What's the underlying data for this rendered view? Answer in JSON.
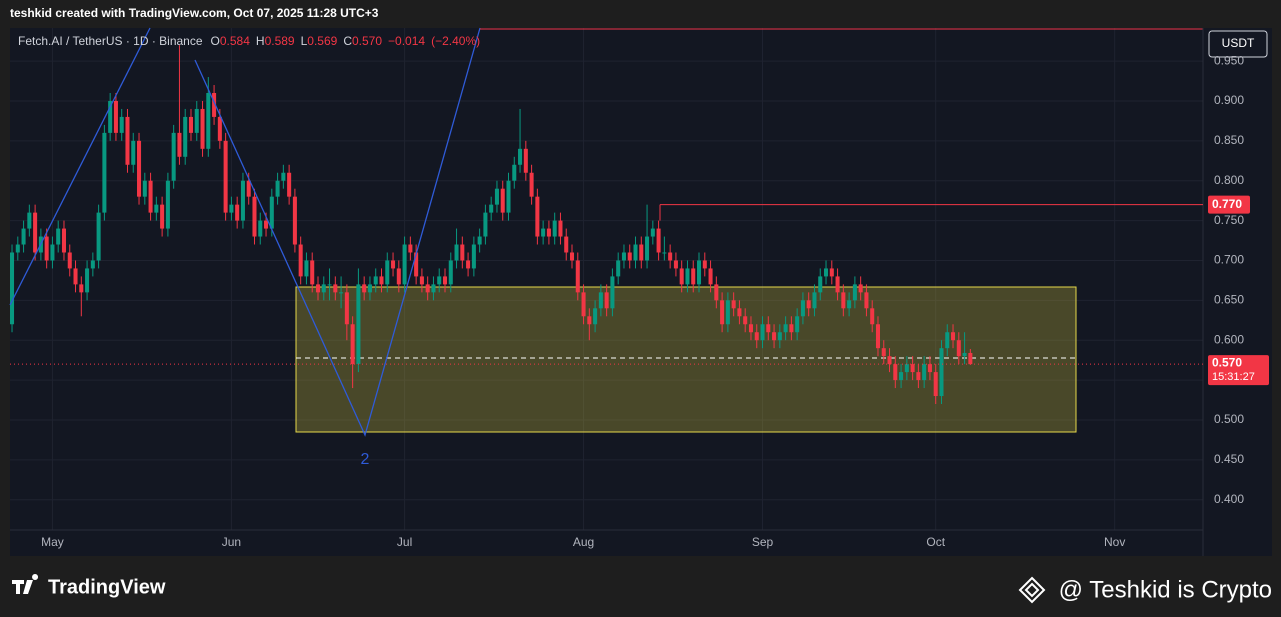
{
  "header": {
    "credit": "teshkid created with TradingView.com, Oct 07, 2025 11:28 UTC+3"
  },
  "chart_data": {
    "type": "candlestick",
    "symbol": "Fetch.AI / TetherUS · 1D · Binance",
    "ohlc_labels": {
      "open": "O",
      "high": "H",
      "low": "L",
      "close": "C"
    },
    "last": {
      "open": 0.584,
      "high": 0.589,
      "low": 0.569,
      "close": {
        "value": 0.57,
        "label": "0.570"
      }
    },
    "change": {
      "value": -0.014,
      "label": "−0.014"
    },
    "change_pct": {
      "value": -2.4,
      "label": "(−2.40%)"
    },
    "currency": "USDT",
    "up_color": "#089981",
    "down_color": "#f23645",
    "open": [
      0.62,
      0.71,
      0.72,
      0.74,
      0.76,
      0.71,
      0.73,
      0.7,
      0.72,
      0.74,
      0.71,
      0.69,
      0.67,
      0.66,
      0.69,
      0.7,
      0.76,
      0.86,
      0.9,
      0.86,
      0.88,
      0.82,
      0.85,
      0.78,
      0.8,
      0.76,
      0.77,
      0.74,
      0.8,
      0.86,
      0.83,
      0.88,
      0.86,
      0.89,
      0.84,
      0.91,
      0.88,
      0.85,
      0.76,
      0.77,
      0.75,
      0.8,
      0.78,
      0.73,
      0.75,
      0.74,
      0.78,
      0.8,
      0.81,
      0.78,
      0.72,
      0.68,
      0.7,
      0.67,
      0.66,
      0.67,
      0.67,
      0.66,
      0.66,
      0.62,
      0.57,
      0.67,
      0.66,
      0.67,
      0.68,
      0.67,
      0.7,
      0.69,
      0.67,
      0.72,
      0.71,
      0.68,
      0.67,
      0.66,
      0.67,
      0.68,
      0.67,
      0.7,
      0.72,
      0.7,
      0.69,
      0.72,
      0.73,
      0.76,
      0.77,
      0.79,
      0.76,
      0.8,
      0.82,
      0.84,
      0.81,
      0.78,
      0.73,
      0.74,
      0.73,
      0.75,
      0.73,
      0.71,
      0.7,
      0.66,
      0.63,
      0.62,
      0.64,
      0.66,
      0.64,
      0.68,
      0.7,
      0.71,
      0.7,
      0.72,
      0.7,
      0.73,
      0.74,
      0.71,
      0.71,
      0.7,
      0.69,
      0.67,
      0.69,
      0.67,
      0.7,
      0.69,
      0.67,
      0.65,
      0.62,
      0.65,
      0.64,
      0.63,
      0.62,
      0.61,
      0.6,
      0.62,
      0.61,
      0.6,
      0.61,
      0.62,
      0.61,
      0.63,
      0.65,
      0.64,
      0.66,
      0.68,
      0.69,
      0.68,
      0.66,
      0.64,
      0.65,
      0.67,
      0.66,
      0.64,
      0.62,
      0.59,
      0.58,
      0.57,
      0.55,
      0.56,
      0.57,
      0.56,
      0.55,
      0.57,
      0.56,
      0.53,
      0.59,
      0.61,
      0.6,
      0.58,
      0.584
    ],
    "high": [
      0.72,
      0.73,
      0.75,
      0.77,
      0.77,
      0.74,
      0.74,
      0.73,
      0.75,
      0.75,
      0.72,
      0.7,
      0.68,
      0.7,
      0.71,
      0.77,
      0.87,
      0.91,
      0.91,
      0.89,
      0.89,
      0.86,
      0.86,
      0.81,
      0.81,
      0.78,
      0.78,
      0.81,
      0.87,
      0.97,
      0.89,
      0.89,
      0.9,
      0.9,
      0.93,
      0.92,
      0.89,
      0.86,
      0.78,
      0.78,
      0.81,
      0.81,
      0.79,
      0.76,
      0.76,
      0.79,
      0.81,
      0.82,
      0.82,
      0.79,
      0.73,
      0.71,
      0.71,
      0.68,
      0.68,
      0.69,
      0.68,
      0.68,
      0.67,
      0.63,
      0.69,
      0.68,
      0.68,
      0.69,
      0.69,
      0.71,
      0.71,
      0.7,
      0.73,
      0.73,
      0.72,
      0.69,
      0.68,
      0.68,
      0.69,
      0.69,
      0.71,
      0.74,
      0.73,
      0.71,
      0.73,
      0.74,
      0.77,
      0.78,
      0.8,
      0.8,
      0.81,
      0.83,
      0.89,
      0.85,
      0.82,
      0.79,
      0.75,
      0.75,
      0.76,
      0.76,
      0.74,
      0.72,
      0.71,
      0.67,
      0.64,
      0.65,
      0.67,
      0.67,
      0.69,
      0.71,
      0.72,
      0.72,
      0.73,
      0.73,
      0.77,
      0.75,
      0.75,
      0.73,
      0.72,
      0.71,
      0.7,
      0.7,
      0.7,
      0.71,
      0.71,
      0.7,
      0.68,
      0.66,
      0.66,
      0.66,
      0.65,
      0.64,
      0.63,
      0.62,
      0.63,
      0.63,
      0.62,
      0.62,
      0.63,
      0.63,
      0.64,
      0.66,
      0.66,
      0.67,
      0.69,
      0.7,
      0.7,
      0.69,
      0.67,
      0.66,
      0.68,
      0.68,
      0.67,
      0.65,
      0.63,
      0.6,
      0.59,
      0.58,
      0.57,
      0.58,
      0.58,
      0.57,
      0.58,
      0.58,
      0.57,
      0.6,
      0.62,
      0.62,
      0.61,
      0.61,
      0.589
    ],
    "low": [
      0.61,
      0.7,
      0.71,
      0.73,
      0.7,
      0.7,
      0.69,
      0.69,
      0.71,
      0.7,
      0.68,
      0.66,
      0.63,
      0.65,
      0.68,
      0.69,
      0.75,
      0.85,
      0.85,
      0.85,
      0.81,
      0.81,
      0.77,
      0.77,
      0.75,
      0.75,
      0.73,
      0.73,
      0.79,
      0.82,
      0.82,
      0.85,
      0.85,
      0.83,
      0.83,
      0.87,
      0.84,
      0.75,
      0.75,
      0.74,
      0.74,
      0.77,
      0.72,
      0.72,
      0.73,
      0.73,
      0.77,
      0.79,
      0.77,
      0.71,
      0.67,
      0.67,
      0.66,
      0.65,
      0.65,
      0.65,
      0.65,
      0.64,
      0.6,
      0.54,
      0.56,
      0.65,
      0.65,
      0.66,
      0.66,
      0.66,
      0.68,
      0.66,
      0.66,
      0.7,
      0.67,
      0.66,
      0.65,
      0.65,
      0.66,
      0.66,
      0.66,
      0.69,
      0.69,
      0.68,
      0.68,
      0.71,
      0.72,
      0.75,
      0.76,
      0.75,
      0.75,
      0.79,
      0.81,
      0.8,
      0.77,
      0.72,
      0.72,
      0.72,
      0.72,
      0.72,
      0.7,
      0.69,
      0.65,
      0.62,
      0.6,
      0.61,
      0.63,
      0.63,
      0.63,
      0.67,
      0.69,
      0.69,
      0.69,
      0.69,
      0.69,
      0.72,
      0.7,
      0.7,
      0.69,
      0.68,
      0.66,
      0.66,
      0.66,
      0.66,
      0.68,
      0.66,
      0.64,
      0.61,
      0.61,
      0.63,
      0.62,
      0.61,
      0.6,
      0.59,
      0.59,
      0.6,
      0.59,
      0.59,
      0.6,
      0.6,
      0.6,
      0.62,
      0.63,
      0.63,
      0.65,
      0.67,
      0.67,
      0.65,
      0.63,
      0.63,
      0.64,
      0.65,
      0.63,
      0.61,
      0.58,
      0.57,
      0.56,
      0.54,
      0.54,
      0.55,
      0.55,
      0.54,
      0.54,
      0.55,
      0.52,
      0.52,
      0.58,
      0.59,
      0.57,
      0.57,
      0.569
    ],
    "close": [
      0.71,
      0.72,
      0.74,
      0.76,
      0.71,
      0.73,
      0.7,
      0.72,
      0.74,
      0.71,
      0.69,
      0.67,
      0.66,
      0.69,
      0.7,
      0.76,
      0.86,
      0.9,
      0.86,
      0.88,
      0.82,
      0.85,
      0.78,
      0.8,
      0.76,
      0.77,
      0.74,
      0.8,
      0.86,
      0.83,
      0.88,
      0.86,
      0.89,
      0.84,
      0.91,
      0.88,
      0.85,
      0.76,
      0.77,
      0.75,
      0.8,
      0.78,
      0.73,
      0.75,
      0.74,
      0.78,
      0.8,
      0.81,
      0.78,
      0.72,
      0.68,
      0.7,
      0.67,
      0.66,
      0.67,
      0.67,
      0.66,
      0.66,
      0.62,
      0.57,
      0.67,
      0.66,
      0.67,
      0.68,
      0.67,
      0.7,
      0.69,
      0.67,
      0.72,
      0.71,
      0.68,
      0.67,
      0.66,
      0.67,
      0.68,
      0.67,
      0.7,
      0.72,
      0.7,
      0.69,
      0.72,
      0.73,
      0.76,
      0.77,
      0.79,
      0.76,
      0.8,
      0.82,
      0.84,
      0.81,
      0.78,
      0.73,
      0.74,
      0.73,
      0.75,
      0.73,
      0.71,
      0.7,
      0.66,
      0.63,
      0.62,
      0.64,
      0.66,
      0.64,
      0.68,
      0.7,
      0.71,
      0.7,
      0.72,
      0.7,
      0.73,
      0.74,
      0.71,
      0.71,
      0.7,
      0.69,
      0.67,
      0.69,
      0.67,
      0.7,
      0.69,
      0.67,
      0.65,
      0.62,
      0.65,
      0.64,
      0.63,
      0.62,
      0.61,
      0.6,
      0.62,
      0.61,
      0.6,
      0.61,
      0.62,
      0.61,
      0.63,
      0.65,
      0.64,
      0.66,
      0.68,
      0.69,
      0.68,
      0.66,
      0.64,
      0.65,
      0.67,
      0.66,
      0.64,
      0.62,
      0.59,
      0.58,
      0.57,
      0.55,
      0.56,
      0.57,
      0.56,
      0.55,
      0.57,
      0.56,
      0.53,
      0.59,
      0.61,
      0.6,
      0.58,
      0.584,
      0.57
    ],
    "ylim": [
      0.362,
      0.989
    ],
    "yticks": [
      {
        "value": 0.4,
        "label": "0.400"
      },
      {
        "value": 0.45,
        "label": "0.450"
      },
      {
        "value": 0.5,
        "label": "0.500"
      },
      {
        "value": 0.55,
        "label": "0.550"
      },
      {
        "value": 0.6,
        "label": "0.600"
      },
      {
        "value": 0.65,
        "label": "0.650"
      },
      {
        "value": 0.7,
        "label": "0.700"
      },
      {
        "value": 0.75,
        "label": "0.750"
      },
      {
        "value": 0.8,
        "label": "0.800"
      },
      {
        "value": 0.85,
        "label": "0.850"
      },
      {
        "value": 0.9,
        "label": "0.900"
      },
      {
        "value": 0.95,
        "label": "0.950"
      }
    ],
    "xlim": [
      -0.35,
      206.3
    ],
    "xticks": [
      {
        "value": 7,
        "label": "May"
      },
      {
        "value": 38,
        "label": "Jun"
      },
      {
        "value": 68,
        "label": "Jul"
      },
      {
        "value": 99,
        "label": "Aug"
      },
      {
        "value": 130,
        "label": "Sep"
      },
      {
        "value": 160,
        "label": "Oct"
      },
      {
        "value": 191,
        "label": "Nov"
      }
    ],
    "grid": true,
    "price_line": {
      "value": 0.57,
      "label": "0.570",
      "countdown": "15:31:27"
    },
    "level_line": {
      "value": 0.77,
      "label": "0.770"
    },
    "annotation": "2"
  },
  "footer": {
    "logo": "TradingView",
    "watermark": "@ Teshkid is Crypto"
  }
}
